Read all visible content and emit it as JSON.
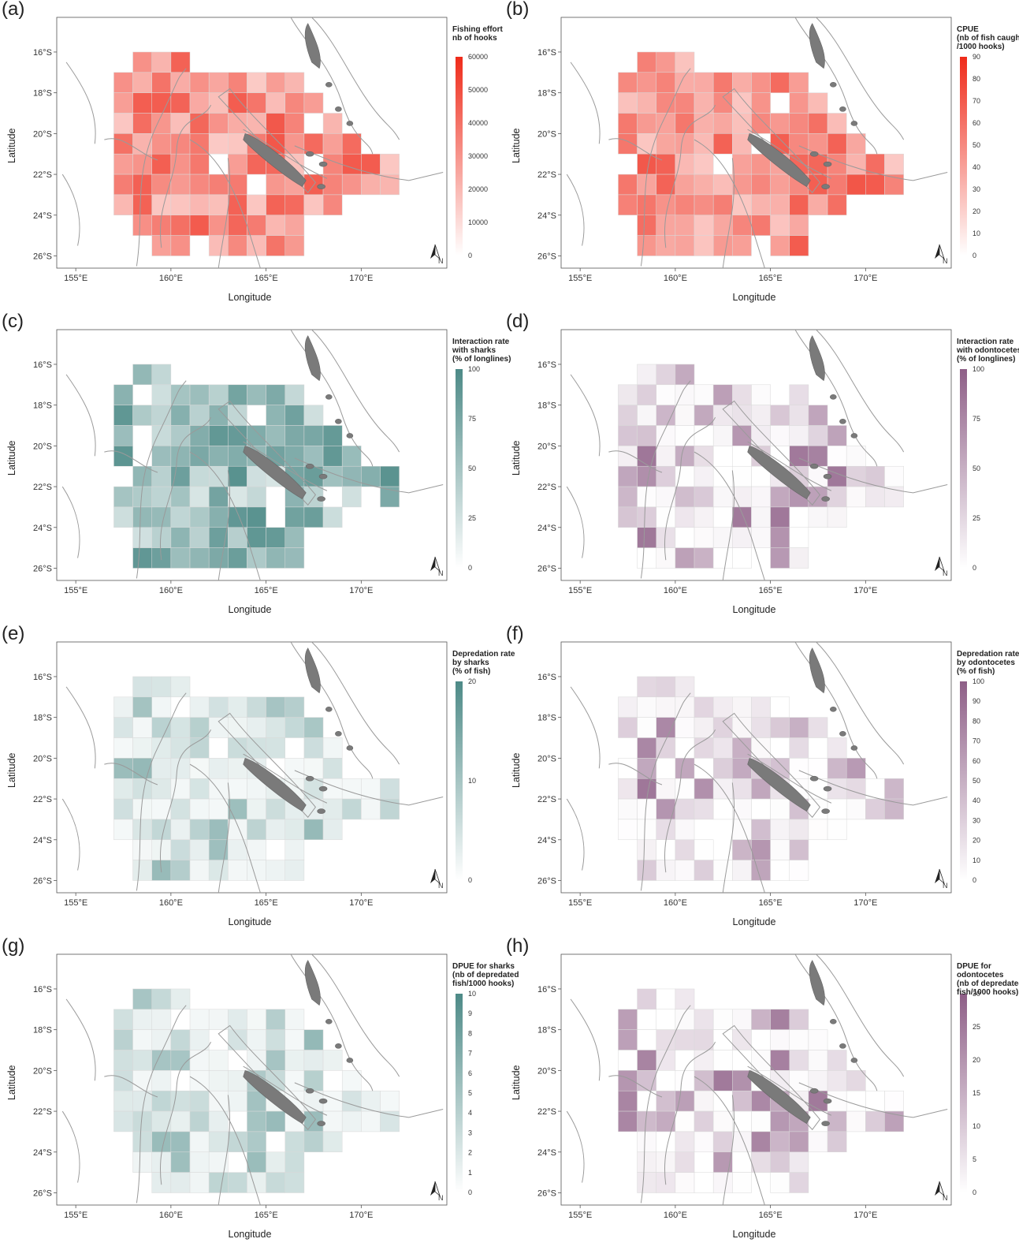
{
  "figure": {
    "map_extent": {
      "lon": [
        154,
        174.5
      ],
      "lat": [
        -26.6,
        -14.3
      ]
    },
    "lon_ticks": [
      "155°E",
      "160°E",
      "165°E",
      "170°E"
    ],
    "lat_ticks": [
      "16°S",
      "18°S",
      "20°S",
      "22°S",
      "24°S",
      "26°S"
    ],
    "xlabel": "Longitude",
    "ylabel": "Latitude",
    "grid_cell_deg": 1,
    "colors": {
      "coast_line": "#9a9a9a",
      "land_fill": "#7a7a7a",
      "cell_border": "#e0e0e0"
    }
  },
  "panels": [
    {
      "id": "a",
      "label": "(a)",
      "legend_title": [
        "Fishing effort",
        "nb of hooks"
      ],
      "legend_ticks": [
        "60000",
        "50000",
        "40000",
        "30000",
        "20000",
        "10000",
        "0"
      ],
      "max": 60000,
      "color": "#ef2b1a",
      "layer": "effort"
    },
    {
      "id": "b",
      "label": "(b)",
      "legend_title": [
        "CPUE",
        "(nb of fish caught",
        "/1000 hooks)"
      ],
      "legend_ticks": [
        "90",
        "80",
        "70",
        "60",
        "50",
        "40",
        "30",
        "20",
        "10",
        "0"
      ],
      "max": 90,
      "color": "#ef2b1a",
      "layer": "effort"
    },
    {
      "id": "c",
      "label": "(c)",
      "legend_title": [
        "Interaction rate",
        "with sharks",
        "(% of longlines)"
      ],
      "legend_ticks": [
        "100",
        "75",
        "50",
        "25",
        "0"
      ],
      "max": 100,
      "color": "#4d8a87",
      "layer": "shark"
    },
    {
      "id": "d",
      "label": "(d)",
      "legend_title": [
        "Interaction rate",
        "with odontocetes",
        "(% of longlines)"
      ],
      "legend_ticks": [
        "100",
        "75",
        "50",
        "25",
        "0"
      ],
      "max": 100,
      "color": "#8e5f87",
      "layer": "odonto"
    },
    {
      "id": "e",
      "label": "(e)",
      "legend_title": [
        "Depredation rate",
        "by sharks",
        "(% of fish)"
      ],
      "legend_ticks": [
        "20",
        "10",
        "0"
      ],
      "max": 20,
      "color": "#4d8a87",
      "layer": "shark"
    },
    {
      "id": "f",
      "label": "(f)",
      "legend_title": [
        "Depredation rate",
        "by odontocetes",
        "(% of fish)"
      ],
      "legend_ticks": [
        "100",
        "90",
        "80",
        "70",
        "60",
        "50",
        "40",
        "30",
        "20",
        "10",
        "0"
      ],
      "max": 100,
      "color": "#8e5f87",
      "layer": "odonto"
    },
    {
      "id": "g",
      "label": "(g)",
      "legend_title": [
        "DPUE for sharks",
        "(nb of depredated",
        "fish/1000 hooks)"
      ],
      "legend_ticks": [
        "10",
        "9",
        "8",
        "7",
        "6",
        "5",
        "4",
        "3",
        "2",
        "1",
        "0"
      ],
      "max": 10,
      "color": "#4d8a87",
      "layer": "shark"
    },
    {
      "id": "h",
      "label": "(h)",
      "legend_title": [
        "DPUE for odontocetes",
        "(nb of depredated",
        "fish/1000 hooks)"
      ],
      "legend_ticks": [
        "30",
        "25",
        "20",
        "15",
        "10",
        "5",
        "0"
      ],
      "max": 30,
      "color": "#8e5f87",
      "layer": "odonto"
    }
  ]
}
